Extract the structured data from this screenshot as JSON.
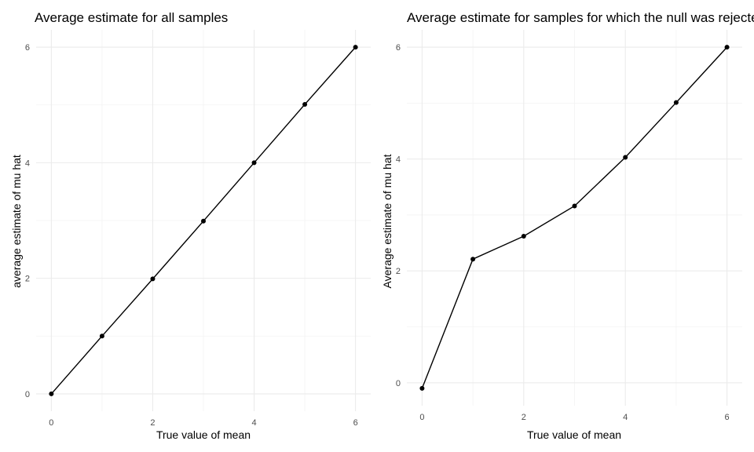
{
  "chart_data": [
    {
      "type": "line",
      "title": "Average estimate for all samples",
      "xlabel": "True value of mean",
      "ylabel": "average estimate of mu hat",
      "x": [
        0,
        1,
        2,
        3,
        4,
        5,
        6
      ],
      "y": [
        0.0,
        1.0,
        1.99,
        2.99,
        4.0,
        5.01,
        6.0
      ],
      "xlim": [
        -0.3,
        6.3
      ],
      "ylim": [
        -0.3,
        6.3
      ],
      "xticks": [
        0,
        2,
        4,
        6
      ],
      "yticks": [
        0,
        2,
        4,
        6
      ],
      "grid": true,
      "points": true
    },
    {
      "type": "line",
      "title": "Average estimate for samples for which the null was rejected",
      "xlabel": "True value of mean",
      "ylabel": "Average estimate of mu hat",
      "x": [
        0,
        1,
        2,
        3,
        4,
        5,
        6
      ],
      "y": [
        -0.1,
        2.21,
        2.62,
        3.16,
        4.03,
        5.01,
        6.0
      ],
      "xlim": [
        -0.3,
        6.3
      ],
      "ylim": [
        -0.41,
        6.31
      ],
      "xticks": [
        0,
        2,
        4,
        6
      ],
      "yticks": [
        0,
        2,
        4,
        6
      ],
      "grid": true,
      "points": true
    }
  ]
}
